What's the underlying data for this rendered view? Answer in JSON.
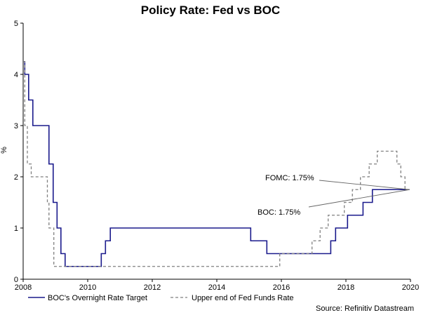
{
  "chart_data": {
    "type": "line",
    "title": "Policy Rate: Fed vs BOC",
    "ylabel": "%",
    "xlabel": "",
    "xlim": [
      2008,
      2020
    ],
    "ylim": [
      0,
      5
    ],
    "x_ticks": [
      "2008",
      "2010",
      "2012",
      "2014",
      "2016",
      "2018",
      "2020"
    ],
    "y_ticks": [
      "0",
      "1",
      "2",
      "3",
      "4",
      "5"
    ],
    "grid": false,
    "legend_position": "bottom",
    "source": "Source: Refinitiv Datastream",
    "annotations": [
      {
        "text": "FOMC: 1.75%",
        "x": 2019.97,
        "y": 1.75,
        "ref": "fed"
      },
      {
        "text": "BOC: 1.75%",
        "x": 2019.97,
        "y": 1.75,
        "ref": "boc"
      }
    ],
    "series": [
      {
        "id": "boc",
        "name": "BOC's Overnight Rate Target",
        "color": "#1a1a8c",
        "style": "solid",
        "points": [
          [
            2008.0,
            4.25
          ],
          [
            2008.05,
            4.25
          ],
          [
            2008.05,
            4.0
          ],
          [
            2008.17,
            4.0
          ],
          [
            2008.17,
            3.5
          ],
          [
            2008.3,
            3.5
          ],
          [
            2008.3,
            3.0
          ],
          [
            2008.8,
            3.0
          ],
          [
            2008.8,
            2.25
          ],
          [
            2008.93,
            2.25
          ],
          [
            2008.93,
            1.5
          ],
          [
            2009.05,
            1.5
          ],
          [
            2009.05,
            1.0
          ],
          [
            2009.17,
            1.0
          ],
          [
            2009.17,
            0.5
          ],
          [
            2009.3,
            0.5
          ],
          [
            2009.3,
            0.25
          ],
          [
            2010.42,
            0.25
          ],
          [
            2010.42,
            0.5
          ],
          [
            2010.55,
            0.5
          ],
          [
            2010.55,
            0.75
          ],
          [
            2010.7,
            0.75
          ],
          [
            2010.7,
            1.0
          ],
          [
            2015.05,
            1.0
          ],
          [
            2015.05,
            0.75
          ],
          [
            2015.55,
            0.75
          ],
          [
            2015.55,
            0.5
          ],
          [
            2017.53,
            0.5
          ],
          [
            2017.53,
            0.75
          ],
          [
            2017.68,
            0.75
          ],
          [
            2017.68,
            1.0
          ],
          [
            2018.05,
            1.0
          ],
          [
            2018.05,
            1.25
          ],
          [
            2018.53,
            1.25
          ],
          [
            2018.53,
            1.5
          ],
          [
            2018.82,
            1.5
          ],
          [
            2018.82,
            1.75
          ],
          [
            2019.97,
            1.75
          ]
        ]
      },
      {
        "id": "fed",
        "name": "Upper end of Fed Funds Rate",
        "color": "#808080",
        "style": "dashed",
        "points": [
          [
            2008.0,
            4.25
          ],
          [
            2008.05,
            4.25
          ],
          [
            2008.05,
            3.0
          ],
          [
            2008.13,
            3.0
          ],
          [
            2008.13,
            2.25
          ],
          [
            2008.25,
            2.25
          ],
          [
            2008.25,
            2.0
          ],
          [
            2008.75,
            2.0
          ],
          [
            2008.75,
            1.5
          ],
          [
            2008.8,
            1.5
          ],
          [
            2008.8,
            1.0
          ],
          [
            2008.95,
            1.0
          ],
          [
            2008.95,
            0.25
          ],
          [
            2015.95,
            0.25
          ],
          [
            2015.95,
            0.5
          ],
          [
            2016.95,
            0.5
          ],
          [
            2016.95,
            0.75
          ],
          [
            2017.2,
            0.75
          ],
          [
            2017.2,
            1.0
          ],
          [
            2017.45,
            1.0
          ],
          [
            2017.45,
            1.25
          ],
          [
            2017.95,
            1.25
          ],
          [
            2017.95,
            1.5
          ],
          [
            2018.2,
            1.5
          ],
          [
            2018.2,
            1.75
          ],
          [
            2018.45,
            1.75
          ],
          [
            2018.45,
            2.0
          ],
          [
            2018.72,
            2.0
          ],
          [
            2018.72,
            2.25
          ],
          [
            2018.97,
            2.25
          ],
          [
            2018.97,
            2.5
          ],
          [
            2019.58,
            2.5
          ],
          [
            2019.58,
            2.25
          ],
          [
            2019.7,
            2.25
          ],
          [
            2019.7,
            2.0
          ],
          [
            2019.83,
            2.0
          ],
          [
            2019.83,
            1.75
          ],
          [
            2019.97,
            1.75
          ]
        ]
      }
    ]
  }
}
